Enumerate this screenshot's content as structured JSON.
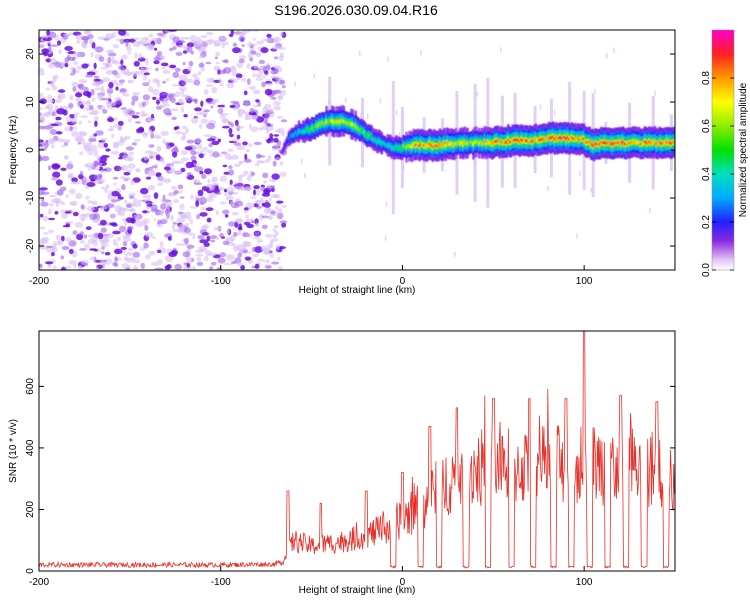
{
  "title": "S196.2026.030.09.04.R16",
  "chart_data": [
    {
      "type": "heatmap",
      "xlabel": "Height of straight line (km)",
      "ylabel": "Frequency (Hz)",
      "xlim": [
        -200,
        150
      ],
      "ylim": [
        -25,
        25
      ],
      "x_ticks": [
        -200,
        -100,
        0,
        100
      ],
      "y_ticks": [
        -20,
        -10,
        0,
        10,
        20
      ],
      "colorbar": {
        "label": "Normalized spectral amplitude",
        "range": [
          0,
          1
        ],
        "ticks": [
          0.0,
          0.2,
          0.4,
          0.6,
          0.8
        ]
      },
      "ridge": {
        "description": "frequency of spectral peak vs height",
        "x": [
          -68,
          -62,
          -55,
          -50,
          -45,
          -40,
          -35,
          -30,
          -25,
          -20,
          -15,
          -10,
          -5,
          0,
          5,
          10,
          20,
          30,
          40,
          50,
          60,
          70,
          80,
          90,
          100,
          105,
          110,
          120,
          130,
          140,
          150
        ],
        "y": [
          -1,
          3,
          4,
          4.5,
          5.5,
          6,
          6,
          5.5,
          4.5,
          3,
          2,
          1,
          0.5,
          0.5,
          1,
          1,
          1,
          1.5,
          1.5,
          1.5,
          2,
          2,
          2.5,
          2.5,
          2,
          1,
          1.5,
          1.5,
          1.5,
          1.5,
          1.5
        ],
        "peak_amplitude": [
          0.1,
          0.3,
          0.45,
          0.55,
          0.6,
          0.7,
          0.75,
          0.7,
          0.6,
          0.55,
          0.45,
          0.4,
          0.45,
          0.6,
          0.75,
          0.9,
          0.9,
          0.75,
          0.7,
          0.85,
          0.9,
          0.85,
          0.9,
          0.9,
          0.85,
          0.95,
          0.9,
          0.9,
          0.85,
          0.9,
          0.9
        ]
      },
      "noise_region": {
        "x_range": [
          -200,
          -65
        ],
        "amplitude": [
          0.05,
          0.15
        ]
      }
    },
    {
      "type": "line",
      "xlabel": "Height of straight line (km)",
      "ylabel": "SNR (10 * v/v)",
      "xlim": [
        -200,
        150
      ],
      "ylim": [
        0,
        780
      ],
      "x_ticks": [
        -200,
        -100,
        0,
        100
      ],
      "y_ticks": [
        0,
        200,
        400,
        600
      ],
      "series": [
        {
          "name": "SNR",
          "color": "#e8302a",
          "envelope_x": [
            -200,
            -150,
            -100,
            -70,
            -65,
            -60,
            -50,
            -40,
            -30,
            -20,
            -10,
            0,
            10,
            20,
            30,
            40,
            50,
            60,
            70,
            80,
            90,
            100,
            110,
            120,
            130,
            140,
            150
          ],
          "envelope_y": [
            20,
            20,
            20,
            22,
            40,
            110,
            90,
            100,
            110,
            130,
            150,
            190,
            230,
            300,
            350,
            370,
            375,
            375,
            380,
            380,
            385,
            390,
            385,
            380,
            375,
            370,
            300
          ],
          "peaks": [
            [
              -63,
              260
            ],
            [
              -45,
              220
            ],
            [
              -20,
              260
            ],
            [
              0,
              320
            ],
            [
              15,
              470
            ],
            [
              30,
              530
            ],
            [
              50,
              560
            ],
            [
              70,
              560
            ],
            [
              90,
              560
            ],
            [
              100,
              780
            ],
            [
              120,
              570
            ],
            [
              140,
              550
            ]
          ],
          "dropouts_x": [
            -5,
            10,
            20,
            35,
            47,
            60,
            72,
            83,
            93,
            103,
            113,
            123,
            133,
            145
          ],
          "dropout_level": 10
        }
      ]
    }
  ]
}
